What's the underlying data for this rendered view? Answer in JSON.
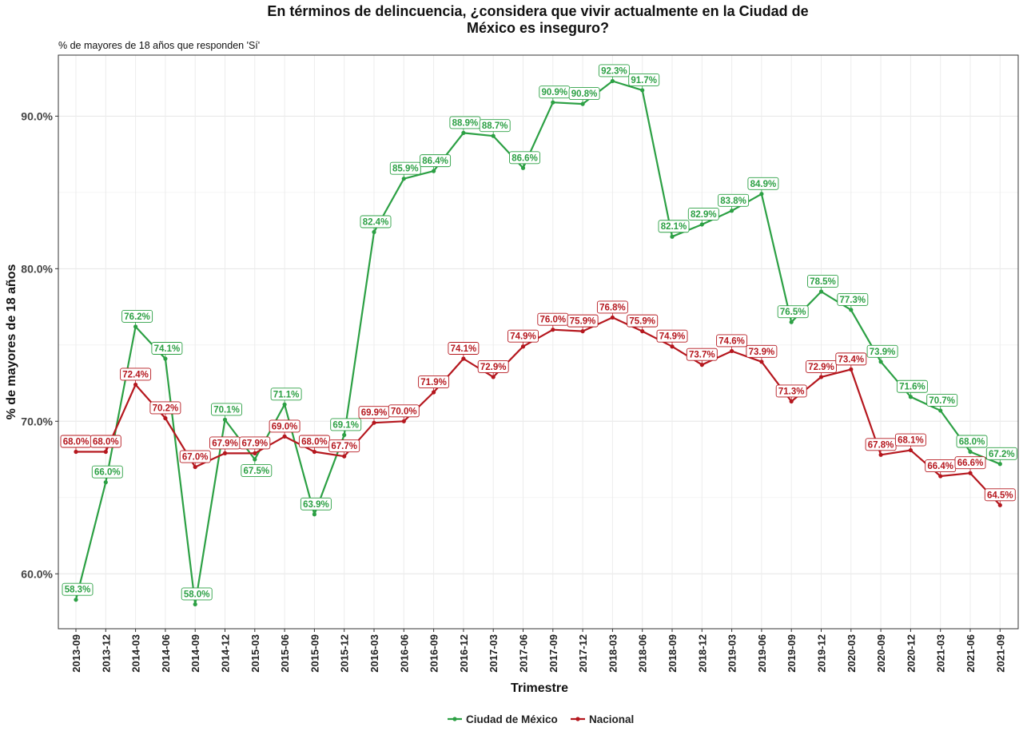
{
  "chart_data": {
    "type": "line",
    "title_line1": "En términos de delincuencia, ¿considera que vivir actualmente en la Ciudad de",
    "title_line2": "México es inseguro?",
    "subtitle": "% de mayores de 18 años que responden 'Sí'",
    "xlabel": "Trimestre",
    "ylabel": "% de mayores de 18 años",
    "ylim": [
      56.4,
      94.0
    ],
    "yticks": [
      60,
      70,
      80,
      90
    ],
    "ytick_labels": [
      "60.0%",
      "70.0%",
      "80.0%",
      "90.0%"
    ],
    "grid": true,
    "legend_position": "bottom",
    "categories": [
      "2013-09",
      "2013-12",
      "2014-03",
      "2014-06",
      "2014-09",
      "2014-12",
      "2015-03",
      "2015-06",
      "2015-09",
      "2015-12",
      "2016-03",
      "2016-06",
      "2016-09",
      "2016-12",
      "2017-03",
      "2017-06",
      "2017-09",
      "2017-12",
      "2018-03",
      "2018-06",
      "2018-09",
      "2018-12",
      "2019-03",
      "2019-06",
      "2019-09",
      "2019-12",
      "2020-03",
      "2020-09",
      "2020-12",
      "2021-03",
      "2021-06",
      "2021-09"
    ],
    "series": [
      {
        "name": "Ciudad de México",
        "color": "#2ca044",
        "values": [
          58.3,
          66.0,
          76.2,
          74.1,
          58.0,
          70.1,
          67.5,
          71.1,
          63.9,
          69.1,
          82.4,
          85.9,
          86.4,
          88.9,
          88.7,
          86.6,
          90.9,
          90.8,
          92.3,
          91.7,
          82.1,
          82.9,
          83.8,
          84.9,
          76.5,
          78.5,
          77.3,
          73.9,
          71.6,
          70.7,
          68.0,
          67.2
        ],
        "labels": [
          "58.3%",
          "66.0%",
          "76.2%",
          "74.1%",
          "58.0%",
          "70.1%",
          "67.5%",
          "71.1%",
          "63.9%",
          "69.1%",
          "82.4%",
          "85.9%",
          "86.4%",
          "88.9%",
          "88.7%",
          "86.6%",
          "90.9%",
          "90.8%",
          "92.3%",
          "91.7%",
          "82.1%",
          "82.9%",
          "83.8%",
          "84.9%",
          "76.5%",
          "78.5%",
          "77.3%",
          "73.9%",
          "71.6%",
          "70.7%",
          "68.0%",
          "67.2%"
        ]
      },
      {
        "name": "Nacional",
        "color": "#b5171e",
        "values": [
          68.0,
          68.0,
          72.4,
          70.2,
          67.0,
          67.9,
          67.9,
          69.0,
          68.0,
          67.7,
          69.9,
          70.0,
          71.9,
          74.1,
          72.9,
          74.9,
          76.0,
          75.9,
          76.8,
          75.9,
          74.9,
          73.7,
          74.6,
          73.9,
          71.3,
          72.9,
          73.4,
          67.8,
          68.1,
          66.4,
          66.6,
          64.5
        ],
        "labels": [
          "68.0%",
          "68.0%",
          "72.4%",
          "70.2%",
          "67.0%",
          "67.9%",
          "67.9%",
          "69.0%",
          "68.0%",
          "67.7%",
          "69.9%",
          "70.0%",
          "71.9%",
          "74.1%",
          "72.9%",
          "74.9%",
          "76.0%",
          "75.9%",
          "76.8%",
          "75.9%",
          "74.9%",
          "73.7%",
          "74.6%",
          "73.9%",
          "71.3%",
          "72.9%",
          "73.4%",
          "67.8%",
          "68.1%",
          "66.4%",
          "66.6%",
          "64.5%"
        ]
      }
    ]
  }
}
